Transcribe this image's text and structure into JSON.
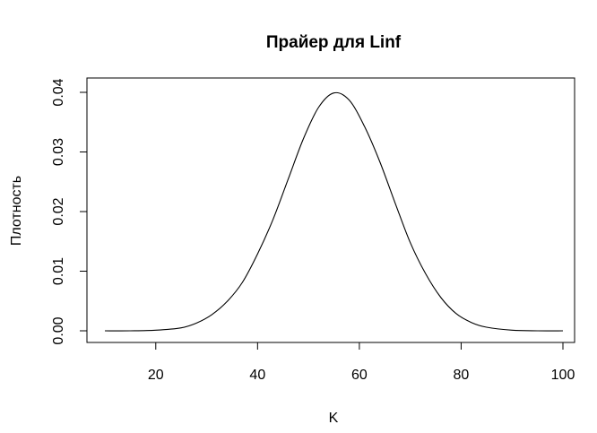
{
  "chart_data": {
    "type": "line",
    "title": "Прайер для Linf",
    "xlabel": "K",
    "ylabel": "Плотность",
    "xlim": [
      10,
      100
    ],
    "ylim": [
      0,
      0.04
    ],
    "x_ticks": [
      "20",
      "40",
      "60",
      "80",
      "100"
    ],
    "y_ticks": [
      "0.00",
      "0.01",
      "0.02",
      "0.03",
      "0.04"
    ],
    "grid": false,
    "legend": "none",
    "series": [
      {
        "x": [
          10,
          15,
          20,
          25,
          28,
          31,
          34,
          37,
          40,
          43,
          46,
          49,
          52,
          55,
          58,
          61,
          64,
          67,
          70,
          73,
          76,
          79,
          82,
          85,
          90,
          95,
          100
        ],
        "y": [
          0.0,
          0.0,
          0.0001,
          0.0005,
          0.0013,
          0.0027,
          0.0049,
          0.0081,
          0.0129,
          0.0186,
          0.0254,
          0.0322,
          0.0375,
          0.0399,
          0.0387,
          0.0343,
          0.0284,
          0.0215,
          0.0148,
          0.0096,
          0.0056,
          0.0029,
          0.0014,
          0.0006,
          0.0001,
          0.0,
          0.0
        ]
      }
    ]
  }
}
